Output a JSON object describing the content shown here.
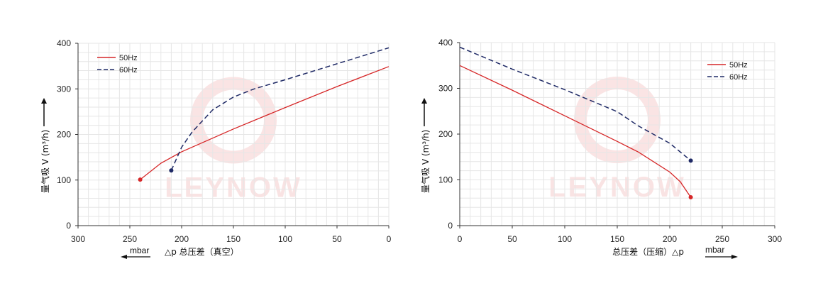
{
  "colors": {
    "s50": "#d62728",
    "s60": "#1f2a66",
    "grid": "#e6e6e6",
    "axis": "#333333",
    "watermark": "#f6d2d2"
  },
  "watermark": "LEYNOW",
  "chart_data": [
    {
      "type": "line",
      "ylabel": "量气吸 V (m³/h)",
      "xlabel": "△p 总压差（真空）",
      "xunit": "mbar",
      "xlim": [
        300,
        0
      ],
      "ylim": [
        0,
        400
      ],
      "xticks": [
        300,
        250,
        200,
        150,
        100,
        50,
        0
      ],
      "yticks": [
        0,
        100,
        200,
        300,
        400
      ],
      "grid": true,
      "legend_position": "top-left",
      "series": [
        {
          "name": "50Hz",
          "style": "solid",
          "color": "#d62728",
          "x": [
            240,
            220,
            200,
            150,
            100,
            50,
            0
          ],
          "y": [
            101,
            137,
            162,
            212,
            259,
            305,
            349
          ]
        },
        {
          "name": "60Hz",
          "style": "dashed",
          "color": "#1f2a66",
          "x": [
            210,
            200,
            190,
            170,
            150,
            130,
            100,
            50,
            0
          ],
          "y": [
            121,
            172,
            205,
            254,
            282,
            300,
            320,
            355,
            390
          ]
        }
      ]
    },
    {
      "type": "line",
      "ylabel": "量气吸 V (m³/h)",
      "xlabel": "总压差（压缩）△p",
      "xunit": "mbar",
      "xlim": [
        0,
        300
      ],
      "ylim": [
        0,
        400
      ],
      "xticks": [
        0,
        50,
        100,
        150,
        200,
        250,
        300
      ],
      "yticks": [
        0,
        100,
        200,
        300,
        400
      ],
      "grid": true,
      "legend_position": "top-right",
      "series": [
        {
          "name": "50Hz",
          "style": "solid",
          "color": "#d62728",
          "x": [
            0,
            50,
            100,
            150,
            170,
            200,
            210,
            220
          ],
          "y": [
            350,
            296,
            240,
            184,
            161,
            117,
            96,
            62
          ]
        },
        {
          "name": "60Hz",
          "style": "dashed",
          "color": "#1f2a66",
          "x": [
            0,
            50,
            100,
            150,
            170,
            200,
            220
          ],
          "y": [
            390,
            342,
            297,
            249,
            218,
            180,
            142
          ]
        }
      ]
    }
  ]
}
